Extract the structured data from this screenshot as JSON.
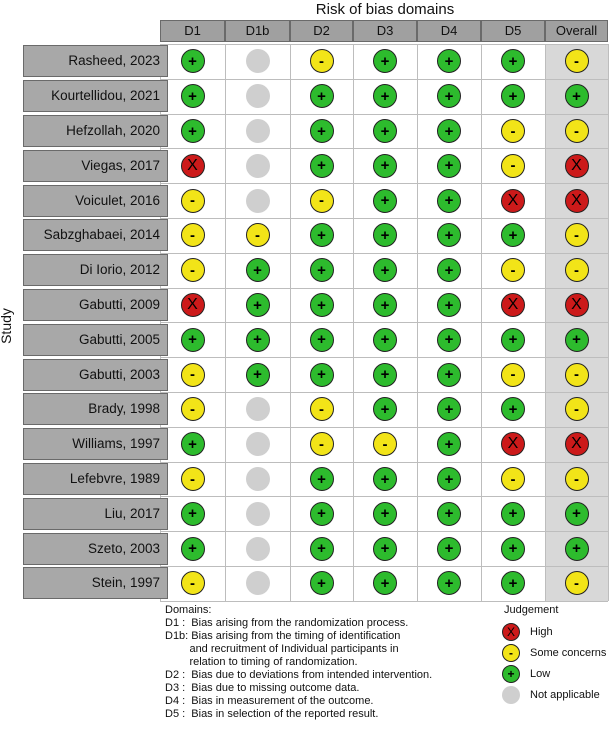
{
  "title": "Risk of bias domains",
  "ylabel": "Study",
  "domains": [
    "D1",
    "D1b",
    "D2",
    "D3",
    "D4",
    "D5",
    "Overall"
  ],
  "studies": [
    {
      "name": "Rasheed, 2023",
      "j": [
        "low",
        "na",
        "some",
        "low",
        "low",
        "low",
        "some"
      ]
    },
    {
      "name": "Kourtellidou, 2021",
      "j": [
        "low",
        "na",
        "low",
        "low",
        "low",
        "low",
        "low"
      ]
    },
    {
      "name": "Hefzollah, 2020",
      "j": [
        "low",
        "na",
        "low",
        "low",
        "low",
        "some",
        "some"
      ]
    },
    {
      "name": "Viegas, 2017",
      "j": [
        "high",
        "na",
        "low",
        "low",
        "low",
        "some",
        "high"
      ]
    },
    {
      "name": "Voiculet, 2016",
      "j": [
        "some",
        "na",
        "some",
        "low",
        "low",
        "high",
        "high"
      ]
    },
    {
      "name": "Sabzghabaei, 2014",
      "j": [
        "some",
        "some",
        "low",
        "low",
        "low",
        "low",
        "some"
      ]
    },
    {
      "name": "Di Iorio, 2012",
      "j": [
        "some",
        "low",
        "low",
        "low",
        "low",
        "some",
        "some"
      ]
    },
    {
      "name": "Gabutti, 2009",
      "j": [
        "high",
        "low",
        "low",
        "low",
        "low",
        "high",
        "high"
      ]
    },
    {
      "name": "Gabutti, 2005",
      "j": [
        "low",
        "low",
        "low",
        "low",
        "low",
        "low",
        "low"
      ]
    },
    {
      "name": "Gabutti, 2003",
      "j": [
        "some",
        "low",
        "low",
        "low",
        "low",
        "some",
        "some"
      ]
    },
    {
      "name": "Brady, 1998",
      "j": [
        "some",
        "na",
        "some",
        "low",
        "low",
        "low",
        "some"
      ]
    },
    {
      "name": "Williams, 1997",
      "j": [
        "low",
        "na",
        "some",
        "some",
        "low",
        "high",
        "high"
      ]
    },
    {
      "name": "Lefebvre, 1989",
      "j": [
        "some",
        "na",
        "low",
        "low",
        "low",
        "some",
        "some"
      ]
    },
    {
      "name": "Liu, 2017",
      "j": [
        "low",
        "na",
        "low",
        "low",
        "low",
        "low",
        "low"
      ]
    },
    {
      "name": "Szeto, 2003",
      "j": [
        "low",
        "na",
        "low",
        "low",
        "low",
        "low",
        "low"
      ]
    },
    {
      "name": "Stein, 1997",
      "j": [
        "some",
        "na",
        "low",
        "low",
        "low",
        "low",
        "some"
      ]
    }
  ],
  "symbols": {
    "high": "X",
    "some": "-",
    "low": "+",
    "na": ""
  },
  "colors": {
    "high": "#cc1a1a",
    "some": "#f2e418",
    "low": "#2dbb2d",
    "na": "#cfcfcf"
  },
  "legend": {
    "heading": "Domains:",
    "lines": [
      "D1 :  Bias arising from the randomization process.",
      "D1b: Bias arising from the timing of identification",
      "        and recruitment of Individual participants in",
      "        relation to timing of randomization.",
      "D2 :  Bias due to deviations from intended intervention.",
      "D3 :  Bias due to missing outcome data.",
      "D4 :  Bias in measurement of the outcome.",
      "D5 :  Bias in selection of the reported result."
    ]
  },
  "judgement": {
    "heading": "Judgement",
    "items": [
      {
        "key": "high",
        "label": "High"
      },
      {
        "key": "some",
        "label": "Some concerns"
      },
      {
        "key": "low",
        "label": "Low"
      },
      {
        "key": "na",
        "label": "Not applicable"
      }
    ]
  }
}
